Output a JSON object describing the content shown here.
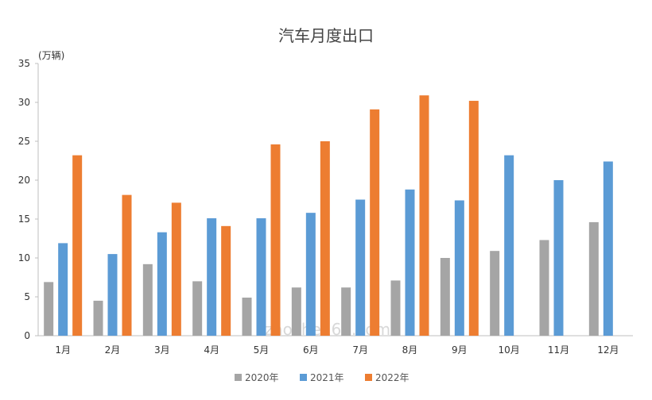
{
  "chart_data": {
    "type": "bar",
    "title": "汽车月度出口",
    "unit_label": "(万辆)",
    "xlabel": "",
    "ylabel": "",
    "ylim": [
      0,
      35
    ],
    "yticks": [
      0,
      5,
      10,
      15,
      20,
      25,
      30,
      35
    ],
    "grid": false,
    "legend_position": "bottom",
    "categories": [
      "1月",
      "2月",
      "3月",
      "4月",
      "5月",
      "6月",
      "7月",
      "8月",
      "9月",
      "10月",
      "11月",
      "12月"
    ],
    "series": [
      {
        "name": "2020年",
        "color": "#a5a5a5",
        "values": [
          6.9,
          4.5,
          9.2,
          7.0,
          4.9,
          6.2,
          6.2,
          7.1,
          10.0,
          10.9,
          12.3,
          14.6
        ]
      },
      {
        "name": "2021年",
        "color": "#5b9bd5",
        "values": [
          11.9,
          10.5,
          13.3,
          15.1,
          15.1,
          15.8,
          17.5,
          18.8,
          17.4,
          23.2,
          20.0,
          22.4
        ]
      },
      {
        "name": "2022年",
        "color": "#ed7d31",
        "values": [
          23.2,
          18.1,
          17.1,
          14.1,
          24.6,
          25.0,
          29.1,
          30.9,
          30.2,
          null,
          null,
          null
        ]
      }
    ]
  },
  "watermark": "zaoche168.com"
}
